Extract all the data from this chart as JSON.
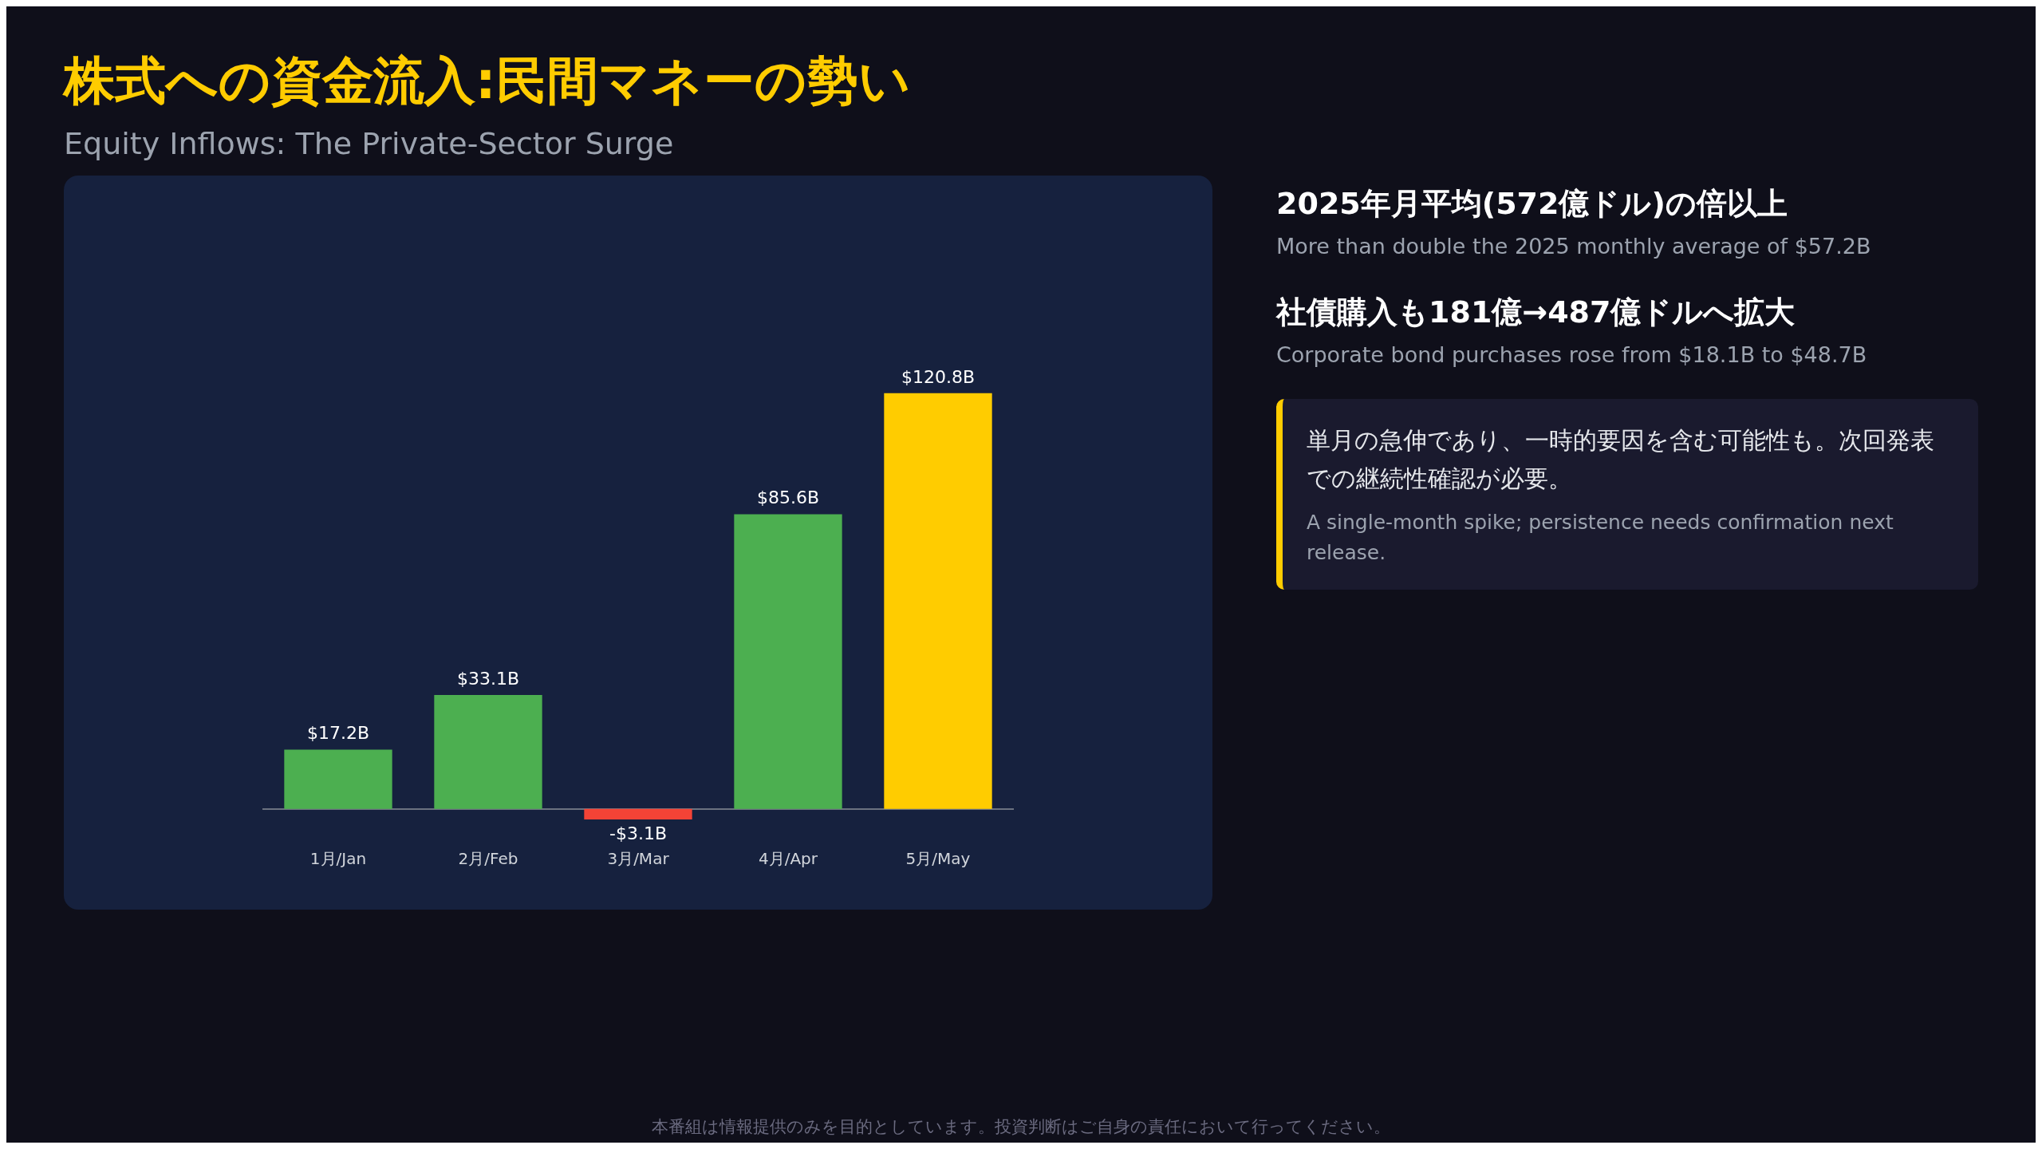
{
  "chart_data": {
    "type": "bar",
    "title": "株式への資金流入:民間マネーの勢い",
    "subtitle": "Equity Inflows: The Private-Sector Surge",
    "categories": [
      "1月/Jan",
      "2月/Feb",
      "3月/Mar",
      "4月/Apr",
      "5月/May"
    ],
    "values": [
      17.2,
      33.1,
      -3.1,
      85.6,
      120.8
    ],
    "colors": [
      "#4caf50",
      "#4caf50",
      "#f44336",
      "#4caf50",
      "#ffcc00"
    ],
    "value_labels": [
      "$17.2B",
      "$33.1B",
      "-$3.1B",
      "$85.6B",
      "$120.8B"
    ],
    "grid": false,
    "legend": false,
    "annotations": [
      "2025年月平均(572億ドル)の倍以上",
      "More than double the 2025 monthly average of $57.2B",
      "社債購入も181億→487億ドルへ拡大",
      "Corporate bond purchases rose from $18.1B to $48.7B",
      "単月の急伸であり、一時的要因を含む可能性も。次回発表での継続性確認が必要。",
      "A single-month spike; persistence needs confirmation next release.",
      "本番組は情報提供のみを目的としています。投資判断はご自身の責任において行ってください。"
    ]
  }
}
